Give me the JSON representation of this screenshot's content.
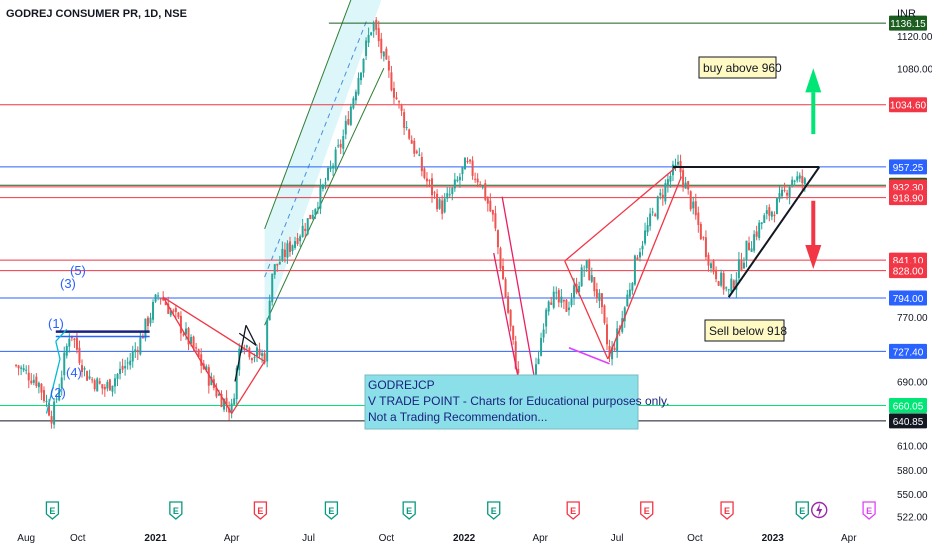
{
  "header": {
    "symbol": "GODREJ CONSUMER PR, 1D, NSE",
    "currency": "INR"
  },
  "chart_data": {
    "type": "candlestick",
    "ylim": [
      515,
      1165
    ],
    "y_ticks": [
      "1120.00",
      "1080.00",
      "770.00",
      "690.00",
      "610.00",
      "580.00",
      "550.00",
      "522.00"
    ],
    "x_ticks": [
      "Aug",
      "Oct",
      "2021",
      "Apr",
      "Jul",
      "Oct",
      "2022",
      "Apr",
      "Jul",
      "Oct",
      "2023",
      "Apr"
    ],
    "x_ticks_bold": [
      "2021",
      "2022",
      "2023"
    ],
    "price_lines": [
      {
        "value": 1136.15,
        "label": "1136.15",
        "color": "#1b5e20"
      },
      {
        "value": 1034.6,
        "label": "1034.60",
        "color": "#f23645"
      },
      {
        "value": 957.25,
        "label": "957.25",
        "color": "#2962ff"
      },
      {
        "value": 934.35,
        "label": "934.35",
        "color": "#1b5e20"
      },
      {
        "value": 932.3,
        "label": "932.30",
        "color": "#f23645"
      },
      {
        "value": 918.9,
        "label": "918.90",
        "color": "#f23645"
      },
      {
        "value": 841.1,
        "label": "841.10",
        "color": "#f23645"
      },
      {
        "value": 828.0,
        "label": "828.00",
        "color": "#f23645"
      },
      {
        "value": 794.0,
        "label": "794.00",
        "color": "#2962ff"
      },
      {
        "value": 727.4,
        "label": "727.40",
        "color": "#2962ff"
      },
      {
        "value": 660.05,
        "label": "660.05",
        "color": "#00e676"
      },
      {
        "value": 640.85,
        "label": "640.85",
        "color": "#131722"
      }
    ],
    "anchors": [
      [
        "2020-07-20",
        710
      ],
      [
        "2020-08-15",
        690
      ],
      [
        "2020-09-01",
        645
      ],
      [
        "2020-09-12",
        700
      ],
      [
        "2020-09-22",
        755
      ],
      [
        "2020-10-10",
        700
      ],
      [
        "2020-11-01",
        680
      ],
      [
        "2020-12-01",
        715
      ],
      [
        "2020-12-15",
        745
      ],
      [
        "2021-01-05",
        800
      ],
      [
        "2021-01-30",
        760
      ],
      [
        "2021-02-20",
        720
      ],
      [
        "2021-03-15",
        675
      ],
      [
        "2021-04-01",
        655
      ],
      [
        "2021-04-12",
        745
      ],
      [
        "2021-04-25",
        725
      ],
      [
        "2021-05-10",
        722
      ],
      [
        "2021-05-18",
        825
      ],
      [
        "2021-06-10",
        860
      ],
      [
        "2021-06-30",
        890
      ],
      [
        "2021-07-20",
        935
      ],
      [
        "2021-08-10",
        990
      ],
      [
        "2021-08-31",
        1080
      ],
      [
        "2021-09-15",
        1138
      ],
      [
        "2021-09-28",
        1090
      ],
      [
        "2021-10-20",
        1020
      ],
      [
        "2021-11-15",
        945
      ],
      [
        "2021-12-05",
        905
      ],
      [
        "2021-12-20",
        930
      ],
      [
        "2022-01-03",
        960
      ],
      [
        "2022-01-20",
        940
      ],
      [
        "2022-02-05",
        890
      ],
      [
        "2022-02-20",
        790
      ],
      [
        "2022-03-05",
        700
      ],
      [
        "2022-03-12",
        665
      ],
      [
        "2022-03-25",
        690
      ],
      [
        "2022-04-10",
        800
      ],
      [
        "2022-05-01",
        780
      ],
      [
        "2022-05-25",
        835
      ],
      [
        "2022-06-10",
        790
      ],
      [
        "2022-06-22",
        718
      ],
      [
        "2022-07-05",
        760
      ],
      [
        "2022-07-25",
        850
      ],
      [
        "2022-08-15",
        905
      ],
      [
        "2022-09-01",
        945
      ],
      [
        "2022-09-12",
        958
      ],
      [
        "2022-09-30",
        900
      ],
      [
        "2022-10-20",
        835
      ],
      [
        "2022-11-10",
        800
      ],
      [
        "2022-12-01",
        855
      ],
      [
        "2022-12-20",
        890
      ],
      [
        "2023-01-10",
        915
      ],
      [
        "2023-01-25",
        945
      ],
      [
        "2023-02-10",
        935
      ]
    ],
    "annotations": {
      "buy": "buy above 960",
      "sell": "Sell below 918",
      "elliott": [
        "(1)",
        "(2)",
        "(3)",
        "(4)",
        "(5)"
      ],
      "note": [
        "GODREJCP",
        "V TRADE POINT - Charts for Educational purposes only.",
        "Not a Trading Recommendation..."
      ]
    },
    "event_markers": [
      {
        "date": "2020-09-01",
        "type": "E",
        "color": "#089981"
      },
      {
        "date": "2021-01-25",
        "type": "E",
        "color": "#089981"
      },
      {
        "date": "2021-05-05",
        "type": "E",
        "color": "#f23645"
      },
      {
        "date": "2021-07-28",
        "type": "E",
        "color": "#089981"
      },
      {
        "date": "2021-10-28",
        "type": "E",
        "color": "#089981"
      },
      {
        "date": "2022-02-05",
        "type": "E",
        "color": "#089981"
      },
      {
        "date": "2022-05-10",
        "type": "E",
        "color": "#f23645"
      },
      {
        "date": "2022-08-05",
        "type": "E",
        "color": "#f23645"
      },
      {
        "date": "2022-11-08",
        "type": "E",
        "color": "#f23645"
      },
      {
        "date": "2023-02-05",
        "type": "E",
        "color": "#089981"
      },
      {
        "date": "2023-02-25",
        "type": "bolt",
        "color": "#9c27b0"
      },
      {
        "date": "2023-04-25",
        "type": "E",
        "color": "#e040fb"
      }
    ]
  }
}
